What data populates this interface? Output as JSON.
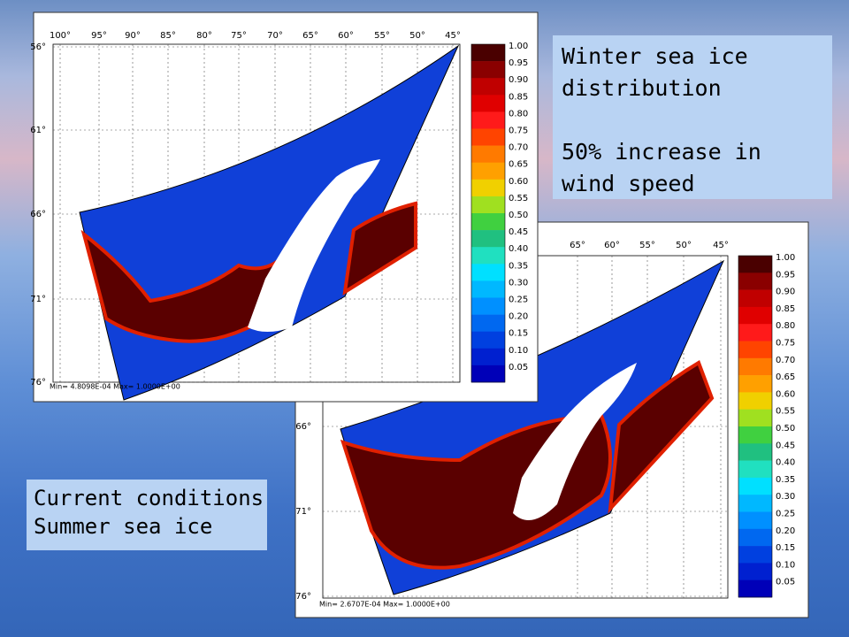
{
  "callouts": {
    "winter": {
      "lines": [
        "Winter sea ice distribution",
        "50% increase in wind speed"
      ]
    },
    "summer": {
      "lines": [
        "Current conditions",
        "Summer sea ice"
      ]
    }
  },
  "maps": [
    {
      "lon_labels": [
        "100°",
        "95°",
        "90°",
        "85°",
        "80°",
        "75°",
        "70°",
        "65°",
        "60°",
        "55°",
        "50°",
        "45°"
      ],
      "lat_labels": [
        "56°",
        "61°",
        "66°",
        "71°",
        "76°"
      ],
      "colorbar": {
        "labels": [
          "1.00",
          "0.95",
          "0.90",
          "0.85",
          "0.80",
          "0.75",
          "0.70",
          "0.65",
          "0.60",
          "0.55",
          "0.50",
          "0.45",
          "0.40",
          "0.35",
          "0.30",
          "0.25",
          "0.20",
          "0.15",
          "0.10",
          "0.05"
        ],
        "colors": [
          "#4a0000",
          "#8a0000",
          "#c00000",
          "#e00000",
          "#ff1a1a",
          "#ff4400",
          "#ff7a00",
          "#ffa000",
          "#f0d000",
          "#a0e020",
          "#40d040",
          "#20c080",
          "#20e0c0",
          "#00e0ff",
          "#00b8ff",
          "#0090ff",
          "#0068f0",
          "#0040e0",
          "#0020d0",
          "#0000b8"
        ]
      },
      "footer": "Min= 4.8098E-04  Max= 1.0000E+00"
    },
    {
      "lon_labels": [
        "65°",
        "60°",
        "55°",
        "50°",
        "45°"
      ],
      "lat_labels": [
        "66°",
        "71°",
        "76°"
      ],
      "colorbar": {
        "labels": [
          "1.00",
          "0.95",
          "0.90",
          "0.85",
          "0.80",
          "0.75",
          "0.70",
          "0.65",
          "0.60",
          "0.55",
          "0.50",
          "0.45",
          "0.40",
          "0.35",
          "0.30",
          "0.25",
          "0.20",
          "0.15",
          "0.10",
          "0.05"
        ],
        "colors": [
          "#4a0000",
          "#8a0000",
          "#c00000",
          "#e00000",
          "#ff1a1a",
          "#ff4400",
          "#ff7a00",
          "#ffa000",
          "#f0d000",
          "#a0e020",
          "#40d040",
          "#20c080",
          "#20e0c0",
          "#00e0ff",
          "#00b8ff",
          "#0090ff",
          "#0068f0",
          "#0040e0",
          "#0020d0",
          "#0000b8"
        ]
      },
      "footer": "Min= 2.6707E-04  Max= 1.0000E+00"
    }
  ]
}
